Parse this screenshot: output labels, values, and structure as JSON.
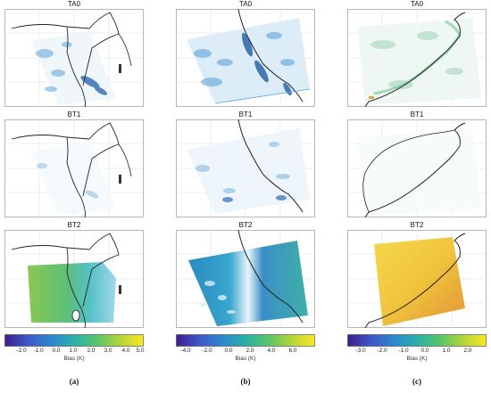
{
  "panel_titles": [
    "TA0",
    "BT1",
    "BT2"
  ],
  "columns": [
    {
      "subfigure_label": "(a)",
      "colorbar": {
        "label": "Bias (K)",
        "ticks": [
          "-2.0",
          "-1.0",
          "0.0",
          "1.0",
          "2.0",
          "3.0",
          "4.0",
          "5.0"
        ],
        "min": -3.0,
        "max": 5.0
      }
    },
    {
      "subfigure_label": "(b)",
      "colorbar": {
        "label": "Bias (K)",
        "ticks": [
          "-4.0",
          "-2.0",
          "0.0",
          "2.0",
          "4.0",
          "6.0"
        ],
        "min": -5.0,
        "max": 8.0
      }
    },
    {
      "subfigure_label": "(c)",
      "colorbar": {
        "label": "Bias (K)",
        "ticks": [
          "-3.0",
          "-2.0",
          "-1.0",
          "0.0",
          "1.0",
          "2.0"
        ],
        "min": -3.7,
        "max": 2.8
      }
    }
  ],
  "colormap": [
    "#3b1f8c",
    "#3f58c8",
    "#2f88cc",
    "#2ab0a8",
    "#5bc46a",
    "#b6d63a",
    "#fde725"
  ]
}
